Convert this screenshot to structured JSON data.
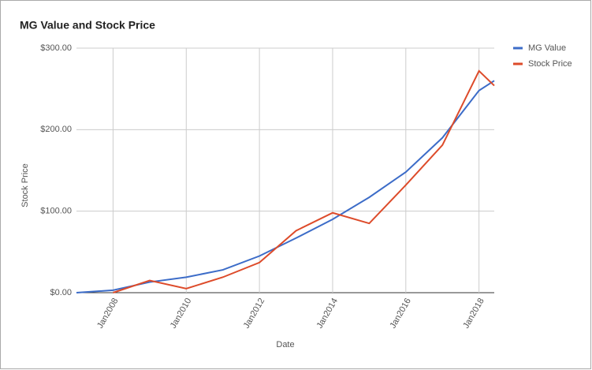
{
  "chart_data": {
    "type": "line",
    "title": "MG Value and Stock Price",
    "x_label": "Date",
    "y_label": "Stock Price",
    "x": [
      "2007-01",
      "2008-01",
      "2009-01",
      "2010-01",
      "2011-01",
      "2012-01",
      "2013-01",
      "2014-01",
      "2015-01",
      "2016-01",
      "2017-01",
      "2018-01",
      "2018-06"
    ],
    "series": [
      {
        "name": "MG Value",
        "color": "#3c6cc8",
        "values": [
          0,
          3,
          13,
          19,
          28,
          45,
          67,
          90,
          117,
          148,
          190,
          248,
          260
        ]
      },
      {
        "name": "Stock Price",
        "color": "#dd4b2a",
        "values": [
          null,
          0,
          15,
          5,
          19,
          37,
          76,
          98,
          85,
          132,
          181,
          272,
          254
        ]
      }
    ],
    "xlim": [
      "2007-01",
      "2018-06"
    ],
    "xticks": [
      {
        "value": "2008-01",
        "label": "Jan2008"
      },
      {
        "value": "2010-01",
        "label": "Jan2010"
      },
      {
        "value": "2012-01",
        "label": "Jan2012"
      },
      {
        "value": "2014-01",
        "label": "Jan2014"
      },
      {
        "value": "2016-01",
        "label": "Jan2016"
      },
      {
        "value": "2018-01",
        "label": "Jan2018"
      }
    ],
    "ylim": [
      0,
      300
    ],
    "yticks": [
      {
        "value": 0,
        "label": "$0.00"
      },
      {
        "value": 100,
        "label": "$100.00"
      },
      {
        "value": 200,
        "label": "$200.00"
      },
      {
        "value": 300,
        "label": "$300.00"
      }
    ],
    "grid": true,
    "legend": "right"
  }
}
